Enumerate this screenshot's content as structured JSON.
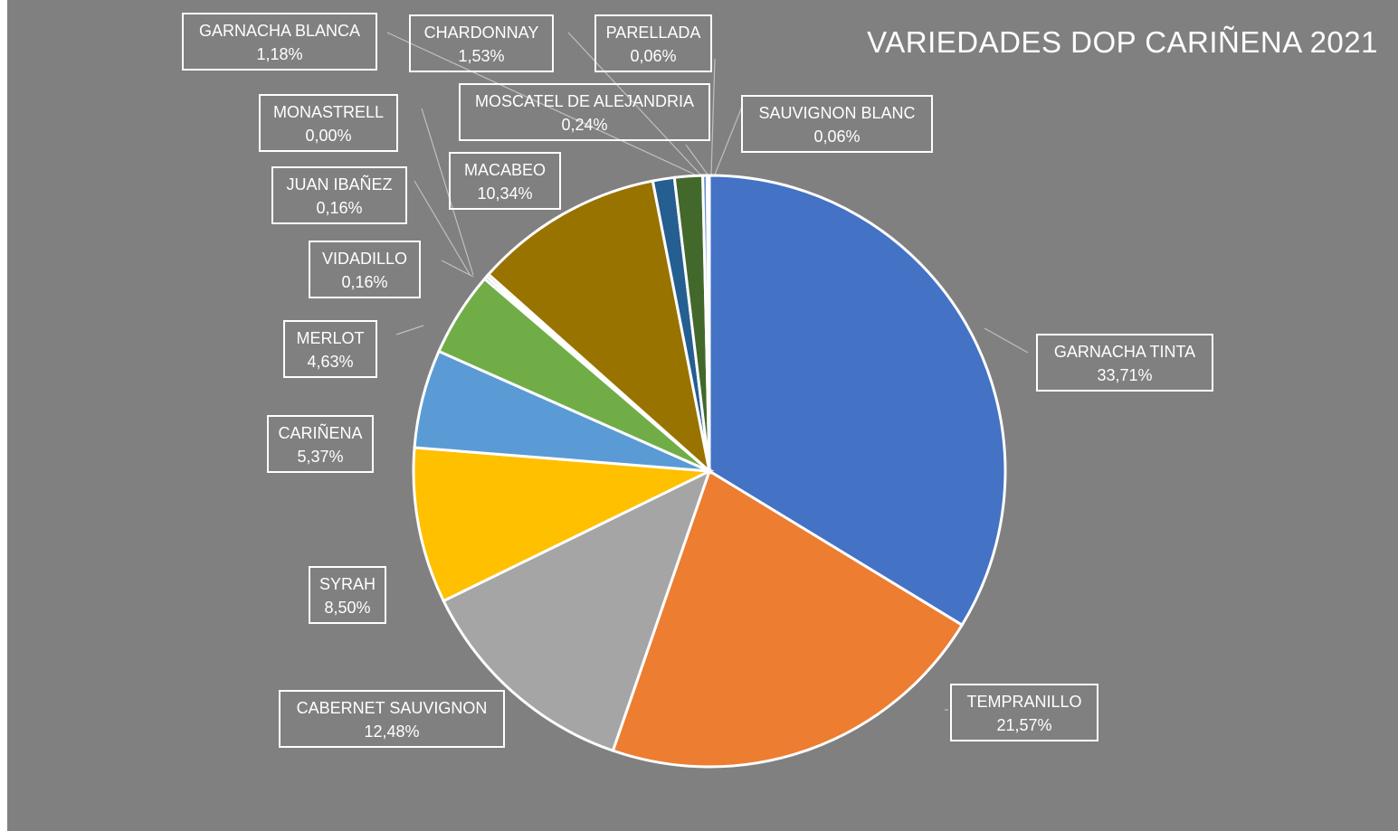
{
  "chart_data": {
    "type": "pie",
    "title": "VARIEDADES DOP CARIÑENA 2021",
    "slices": [
      {
        "label": "GARNACHA TINTA",
        "value": 33.71,
        "display": "33,71%",
        "color": "#4472c4"
      },
      {
        "label": "TEMPRANILLO",
        "value": 21.57,
        "display": "21,57%",
        "color": "#ed7d31"
      },
      {
        "label": "CABERNET SAUVIGNON",
        "value": 12.48,
        "display": "12,48%",
        "color": "#a5a5a5"
      },
      {
        "label": "SYRAH",
        "value": 8.5,
        "display": "8,50%",
        "color": "#ffc000"
      },
      {
        "label": "CARIÑENA",
        "value": 5.37,
        "display": "5,37%",
        "color": "#5b9bd5"
      },
      {
        "label": "MERLOT",
        "value": 4.63,
        "display": "4,63%",
        "color": "#70ad47"
      },
      {
        "label": "VIDADILLO",
        "value": 0.16,
        "display": "0,16%",
        "color": "#264478"
      },
      {
        "label": "JUAN IBAÑEZ",
        "value": 0.16,
        "display": "0,16%",
        "color": "#9e480e"
      },
      {
        "label": "MONASTRELL",
        "value": 0.0,
        "display": "0,00%",
        "color": "#636363"
      },
      {
        "label": "MACABEO",
        "value": 10.34,
        "display": "10,34%",
        "color": "#997300"
      },
      {
        "label": "GARNACHA BLANCA",
        "value": 1.18,
        "display": "1,18%",
        "color": "#255e91"
      },
      {
        "label": "CHARDONNAY",
        "value": 1.53,
        "display": "1,53%",
        "color": "#43682b"
      },
      {
        "label": "MOSCATEL DE ALEJANDRIA",
        "value": 0.24,
        "display": "0,24%",
        "color": "#698ed0"
      },
      {
        "label": "PARELLADA",
        "value": 0.06,
        "display": "0,06%",
        "color": "#f1975a"
      },
      {
        "label": "SAUVIGNON BLANC",
        "value": 0.06,
        "display": "0,06%",
        "color": "#b7b7b7"
      }
    ],
    "legend": "none",
    "data_labels": "category name and percentage, boxed, with leader lines"
  }
}
